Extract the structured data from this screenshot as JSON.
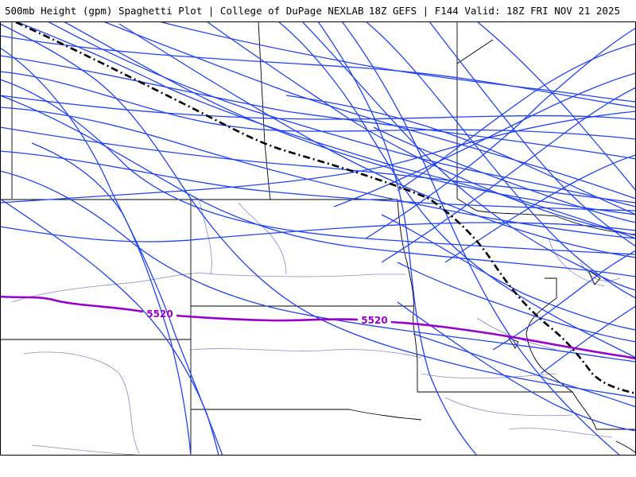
{
  "header": {
    "title": "500mb Height (gpm) Spaghetti Plot | College of DuPage NEXLAB",
    "run_info": "18Z GEFS | F144 Valid: 18Z FRI NOV 21 2025"
  },
  "contour": {
    "value": "5520",
    "label_1": "5520",
    "label_2": "5520",
    "color": "#9900cc"
  },
  "colors": {
    "member": "#2244ee",
    "mean": "#000000",
    "state_border": "#000000",
    "county_border": "#8888cc"
  }
}
